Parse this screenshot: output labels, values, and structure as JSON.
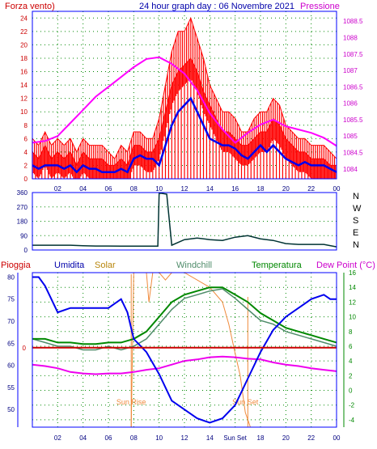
{
  "header": {
    "left_label": "Forza vento)",
    "title": "24 hour graph day : 06 Novembre 2021",
    "right_label": "Pressione"
  },
  "colors": {
    "wind": "#ff0000",
    "gust": "#ff0000",
    "wind_avg": "#0000ee",
    "pressure": "#ff00ff",
    "direction": "#003333",
    "humidity": "#0000ee",
    "solar": "#f08a3c",
    "windchill": "#4f8c6a",
    "temperature": "#008800",
    "dewpoint": "#ee00ee",
    "rain": "#cc0000",
    "grid": "#008800",
    "frame": "#0000ff"
  },
  "chart_data": [
    {
      "type": "line",
      "name": "wind_pressure",
      "x_ticks": [
        "02",
        "04",
        "06",
        "08",
        "10",
        "12",
        "14",
        "16",
        "18",
        "20",
        "22",
        "00"
      ],
      "xlim": [
        0,
        24
      ],
      "y_left": {
        "label": "Forza vento)",
        "ticks": [
          0,
          2,
          4,
          6,
          8,
          10,
          12,
          14,
          16,
          18,
          20,
          22,
          24
        ],
        "lim": [
          0,
          25
        ]
      },
      "y_right": {
        "label": "Pressione",
        "ticks": [
          "1084",
          "1084.5",
          "1085",
          "1085.5",
          "1086",
          "1086.5",
          "1087",
          "1087.5",
          "1088",
          "1088.5"
        ],
        "lim": [
          1083.7,
          1088.8
        ]
      },
      "series": [
        {
          "key": "gust",
          "x": [
            0,
            0.5,
            1,
            1.5,
            2,
            2.5,
            3,
            3.5,
            4,
            4.5,
            5,
            5.5,
            6,
            6.5,
            7,
            7.5,
            8,
            8.5,
            9,
            9.5,
            10,
            10.5,
            11,
            11.5,
            12,
            12.5,
            13,
            13.5,
            14,
            14.5,
            15,
            15.5,
            16,
            16.5,
            17,
            17.5,
            18,
            18.5,
            19,
            19.5,
            20,
            20.5,
            21,
            21.5,
            22,
            22.5,
            23,
            23.5,
            24
          ],
          "values": [
            6,
            5,
            7,
            5,
            6,
            5,
            6,
            4,
            6,
            5,
            5,
            5,
            4,
            3,
            5,
            4,
            7,
            7,
            6,
            6,
            9,
            14,
            19,
            22,
            22,
            24,
            21,
            18,
            14,
            12,
            10,
            10,
            9,
            7,
            7,
            9,
            10,
            10,
            12,
            11,
            8,
            7,
            6,
            6,
            5,
            5,
            5,
            4,
            3
          ]
        },
        {
          "key": "wind",
          "x": [
            0,
            0.5,
            1,
            1.5,
            2,
            2.5,
            3,
            3.5,
            4,
            4.5,
            5,
            5.5,
            6,
            6.5,
            7,
            7.5,
            8,
            8.5,
            9,
            9.5,
            10,
            10.5,
            11,
            11.5,
            12,
            12.5,
            13,
            13.5,
            14,
            14.5,
            15,
            15.5,
            16,
            16.5,
            17,
            17.5,
            18,
            18.5,
            19,
            19.5,
            20,
            20.5,
            21,
            21.5,
            22,
            22.5,
            23,
            23.5,
            24
          ],
          "values": [
            4,
            3,
            5,
            3,
            4,
            3,
            4,
            2,
            4,
            3,
            3,
            3,
            2,
            2,
            3,
            2,
            5,
            5,
            4,
            4,
            6,
            10,
            14,
            16,
            17,
            18,
            16,
            13,
            11,
            9,
            7,
            7,
            6,
            5,
            5,
            6,
            7,
            7,
            9,
            8,
            6,
            5,
            4,
            4,
            3,
            3,
            3,
            2,
            2
          ]
        },
        {
          "key": "wind_avg",
          "x": [
            0,
            0.5,
            1,
            1.5,
            2,
            2.5,
            3,
            3.5,
            4,
            4.5,
            5,
            5.5,
            6,
            6.5,
            7,
            7.5,
            8,
            8.5,
            9,
            9.5,
            10,
            10.5,
            11,
            11.5,
            12,
            12.5,
            13,
            13.5,
            14,
            14.5,
            15,
            15.5,
            16,
            16.5,
            17,
            17.5,
            18,
            18.5,
            19,
            19.5,
            20,
            20.5,
            21,
            21.5,
            22,
            22.5,
            23,
            23.5,
            24
          ],
          "values": [
            2,
            1.5,
            2,
            2,
            2,
            1.5,
            2,
            1,
            2,
            1.5,
            1.5,
            1,
            1,
            1,
            1.5,
            1,
            3,
            3.5,
            3,
            3,
            2,
            5,
            8,
            10,
            11,
            12,
            10,
            8,
            6,
            5.5,
            5,
            5,
            4.5,
            3.5,
            3,
            4,
            5,
            4,
            5,
            4,
            3,
            2.5,
            2,
            2.5,
            2,
            2,
            2,
            1.5,
            1
          ]
        },
        {
          "key": "pressure",
          "x": [
            0,
            1,
            2,
            3,
            4,
            5,
            6,
            7,
            8,
            9,
            10,
            11,
            12,
            13,
            14,
            15,
            16,
            17,
            18,
            19,
            20,
            21,
            22,
            23,
            24
          ],
          "values": [
            1084.8,
            1084.85,
            1085.0,
            1085.4,
            1085.8,
            1086.2,
            1086.5,
            1086.8,
            1087.1,
            1087.35,
            1087.4,
            1087.2,
            1086.9,
            1086.4,
            1085.7,
            1085.2,
            1084.8,
            1085.1,
            1085.35,
            1085.5,
            1085.3,
            1085.2,
            1085.1,
            1084.95,
            1084.7
          ]
        }
      ]
    },
    {
      "type": "line",
      "name": "wind_direction",
      "xlim": [
        0,
        24
      ],
      "y_left": {
        "ticks": [
          0,
          90,
          180,
          270,
          360
        ],
        "lim": [
          0,
          360
        ]
      },
      "y_right": {
        "ticks": [
          "N",
          "W",
          "S",
          "E",
          "N"
        ]
      },
      "series": [
        {
          "key": "direction",
          "x": [
            0,
            1,
            2,
            3,
            4,
            5,
            6,
            7,
            8,
            9,
            9.9,
            10,
            10.2,
            10.6,
            11,
            12,
            13,
            14,
            15,
            16,
            17,
            18,
            19,
            20,
            21,
            22,
            23,
            24
          ],
          "values": [
            30,
            30,
            30,
            30,
            27,
            25,
            25,
            24,
            24,
            24,
            24,
            355,
            355,
            350,
            30,
            65,
            75,
            65,
            60,
            80,
            90,
            70,
            60,
            40,
            35,
            35,
            35,
            20
          ]
        }
      ]
    },
    {
      "type": "line",
      "name": "temp_humidity",
      "labels": [
        "Pioggia",
        "Umidita",
        "Solar",
        "Windchill",
        "Temperatura",
        "Dew Point (°C)"
      ],
      "x_ticks": [
        "02",
        "04",
        "06",
        "08",
        "10",
        "12",
        "14",
        "Sun Set",
        "18",
        "20",
        "22",
        "00"
      ],
      "xlim": [
        0,
        24
      ],
      "y_left": {
        "ticks": [
          50,
          55,
          60,
          65,
          70,
          75,
          80
        ],
        "lim": [
          46,
          81
        ]
      },
      "y_right": {
        "ticks": [
          -4,
          -2,
          0,
          2,
          4,
          6,
          8,
          10,
          12,
          14,
          16
        ],
        "lim": [
          -5,
          16
        ]
      },
      "rain_axis_label": "0",
      "annotations": [
        "Sun Rise",
        "Sun Set"
      ],
      "series": [
        {
          "key": "humidity",
          "x": [
            0,
            0.5,
            1,
            2,
            3,
            4,
            5,
            6,
            7,
            7.5,
            8,
            9,
            10,
            11,
            12,
            13,
            14,
            15,
            16,
            17,
            18,
            19,
            20,
            21,
            22,
            23,
            23.5,
            24
          ],
          "values": [
            80,
            80,
            78,
            72,
            73,
            73,
            73,
            73,
            75,
            72,
            66,
            63,
            58,
            52,
            50,
            48,
            47,
            48,
            51,
            57,
            63,
            68,
            71,
            73,
            75,
            76,
            75,
            75
          ]
        },
        {
          "key": "temperature",
          "x": [
            0,
            1,
            2,
            3,
            4,
            5,
            6,
            7,
            8,
            9,
            10,
            11,
            12,
            13,
            14,
            15,
            16,
            17,
            18,
            19,
            20,
            21,
            22,
            23,
            24
          ],
          "values": [
            7,
            7,
            6.5,
            6.5,
            6.3,
            6.3,
            6.5,
            6.5,
            7,
            8,
            10,
            12,
            13,
            13.5,
            14,
            14,
            13,
            12,
            10.5,
            9.5,
            8.5,
            8,
            7.5,
            7,
            6.5
          ]
        },
        {
          "key": "windchill",
          "x": [
            0,
            1,
            2,
            3,
            4,
            5,
            6,
            7,
            8,
            9,
            10,
            11,
            12,
            13,
            14,
            15,
            16,
            17,
            18,
            19,
            20,
            21,
            22,
            23,
            24
          ],
          "values": [
            7,
            6.5,
            6,
            6,
            5.5,
            5.5,
            6,
            5.5,
            6,
            7,
            9,
            11,
            12.5,
            13,
            13.5,
            13.8,
            12.5,
            11,
            9.5,
            9,
            8,
            7.5,
            7,
            6.5,
            6
          ]
        },
        {
          "key": "dewpoint",
          "x": [
            0,
            1,
            2,
            3,
            4,
            5,
            6,
            7,
            8,
            9,
            10,
            11,
            12,
            13,
            14,
            15,
            16,
            17,
            18,
            19,
            20,
            21,
            22,
            23,
            24
          ],
          "values": [
            3.5,
            3.3,
            3,
            2.5,
            2.3,
            2.2,
            2.3,
            2.3,
            2.5,
            2.8,
            3,
            3.5,
            4,
            4.2,
            4.5,
            4.6,
            4.5,
            4.3,
            4.2,
            3.8,
            3.5,
            3.3,
            3,
            2.8,
            2.6
          ]
        },
        {
          "key": "solar",
          "x": [
            7.8,
            8,
            8.5,
            9,
            9.2,
            9.5,
            10,
            10.5,
            11,
            12,
            13,
            14,
            15,
            15.5,
            16,
            16.4,
            16.8,
            17.2
          ],
          "values": [
            -5,
            16,
            16,
            16,
            12,
            16,
            16,
            15,
            16,
            16,
            15,
            14,
            12,
            9,
            5,
            2,
            -3,
            -5
          ]
        },
        {
          "key": "rain",
          "x": [
            0,
            24
          ],
          "values": [
            0,
            0
          ]
        }
      ]
    }
  ]
}
